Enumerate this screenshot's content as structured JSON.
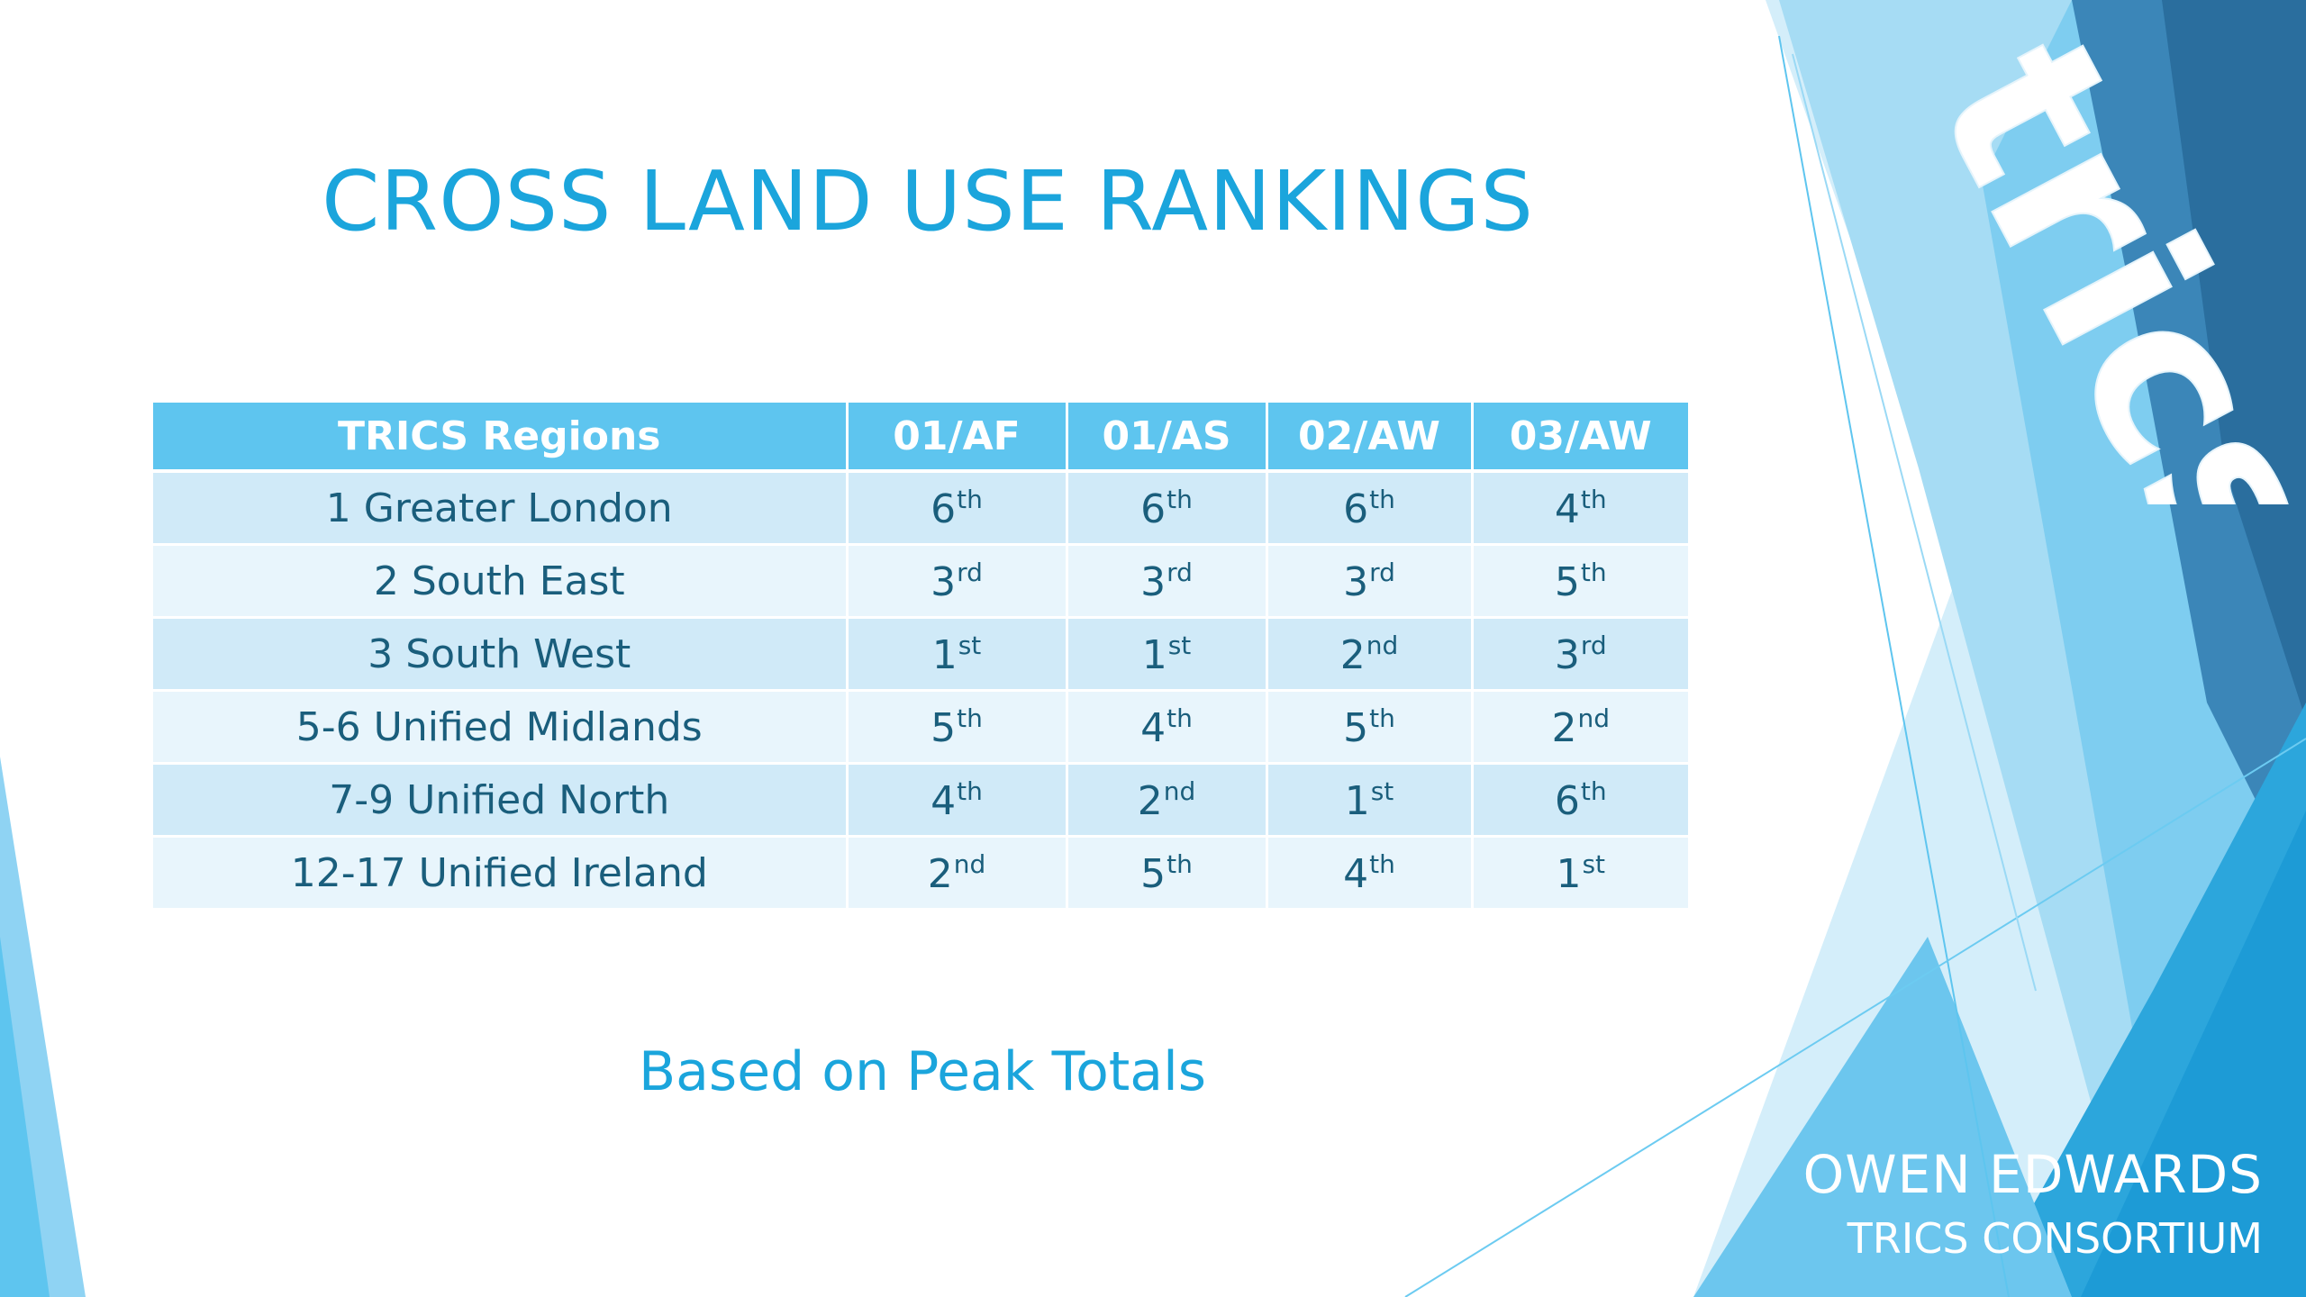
{
  "slide": {
    "title": "CROSS LAND USE RANKINGS",
    "subtitle": "Based on Peak Totals"
  },
  "table": {
    "headers": [
      "TRICS Regions",
      "01/AF",
      "01/AS",
      "02/AW",
      "03/AW"
    ],
    "rows": [
      {
        "region": "1 Greater London",
        "ranks": [
          [
            "6",
            "th"
          ],
          [
            "6",
            "th"
          ],
          [
            "6",
            "th"
          ],
          [
            "4",
            "th"
          ]
        ]
      },
      {
        "region": "2 South East",
        "ranks": [
          [
            "3",
            "rd"
          ],
          [
            "3",
            "rd"
          ],
          [
            "3",
            "rd"
          ],
          [
            "5",
            "th"
          ]
        ]
      },
      {
        "region": "3 South West",
        "ranks": [
          [
            "1",
            "st"
          ],
          [
            "1",
            "st"
          ],
          [
            "2",
            "nd"
          ],
          [
            "3",
            "rd"
          ]
        ]
      },
      {
        "region": "5-6 Unified Midlands",
        "ranks": [
          [
            "5",
            "th"
          ],
          [
            "4",
            "th"
          ],
          [
            "5",
            "th"
          ],
          [
            "2",
            "nd"
          ]
        ]
      },
      {
        "region": "7-9 Unified North",
        "ranks": [
          [
            "4",
            "th"
          ],
          [
            "2",
            "nd"
          ],
          [
            "1",
            "st"
          ],
          [
            "6",
            "th"
          ]
        ]
      },
      {
        "region": "12-17 Unified Ireland",
        "ranks": [
          [
            "2",
            "nd"
          ],
          [
            "5",
            "th"
          ],
          [
            "4",
            "th"
          ],
          [
            "1",
            "st"
          ]
        ]
      }
    ]
  },
  "presenter": {
    "name": "OWEN EDWARDS",
    "organization": "TRICS CONSORTIUM"
  },
  "logo": {
    "text": "trics",
    "icon": "trics-logo"
  },
  "colors": {
    "accent": "#1ba5dc",
    "header_bg": "#5ec5ef",
    "row_odd": "#d0eaf8",
    "row_even": "#e8f5fc",
    "cell_text": "#1a5e7c",
    "deep_blue": "#2a6e9e"
  }
}
